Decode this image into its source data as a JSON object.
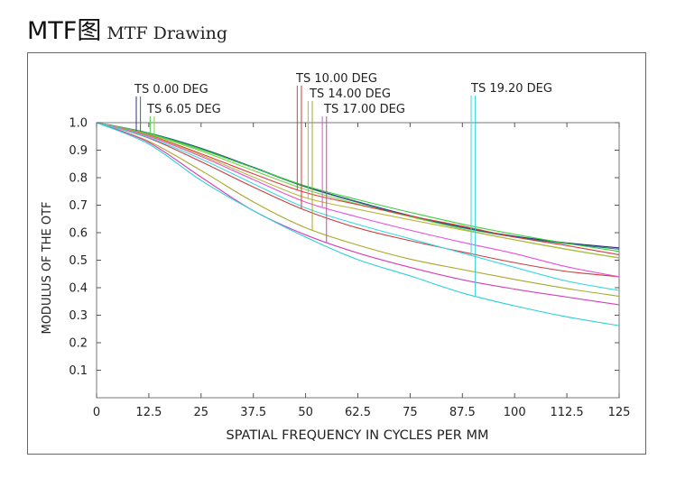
{
  "header": {
    "title": "MTF图",
    "subtitle": "MTF Drawing"
  },
  "chart_data": {
    "type": "line",
    "xlabel": "SPATIAL FREQUENCY IN CYCLES PER MM",
    "ylabel": "MODULUS OF THE OTF",
    "xlim": [
      0,
      125
    ],
    "ylim": [
      0,
      1.0
    ],
    "x_ticks": [
      0,
      12.5,
      25,
      37.5,
      50,
      62.5,
      75,
      87.5,
      100,
      112.5,
      125
    ],
    "x_tick_labels": [
      "0",
      "12.5",
      "25",
      "37.5",
      "50",
      "62.5",
      "75",
      "87.5",
      "100",
      "112.5",
      "125"
    ],
    "y_ticks": [
      0.1,
      0.2,
      0.3,
      0.4,
      0.5,
      0.6,
      0.7,
      0.8,
      0.9,
      1.0
    ],
    "y_tick_labels": [
      "0.1",
      "0.2",
      "0.3",
      "0.4",
      "0.5",
      "0.6",
      "0.7",
      "0.8",
      "0.9",
      "1.0"
    ],
    "x": [
      0,
      12.5,
      25,
      37.5,
      50,
      62.5,
      75,
      87.5,
      100,
      112.5,
      125
    ],
    "series": [
      {
        "field": "TS 0.00 DEG",
        "mode": "T",
        "color": "#2b2f8c",
        "values": [
          1.0,
          0.962,
          0.907,
          0.838,
          0.768,
          0.712,
          0.662,
          0.62,
          0.587,
          0.563,
          0.545
        ]
      },
      {
        "field": "TS 0.00 DEG",
        "mode": "S",
        "color": "#1f7a6a",
        "values": [
          1.0,
          0.962,
          0.906,
          0.836,
          0.766,
          0.71,
          0.66,
          0.618,
          0.584,
          0.56,
          0.54
        ]
      },
      {
        "field": "TS 6.05 DEG",
        "mode": "T",
        "color": "#3ad13a",
        "values": [
          1.0,
          0.96,
          0.902,
          0.836,
          0.77,
          0.72,
          0.674,
          0.631,
          0.594,
          0.561,
          0.532
        ]
      },
      {
        "field": "TS 6.05 DEG",
        "mode": "S",
        "color": "#77d24a",
        "values": [
          1.0,
          0.958,
          0.897,
          0.826,
          0.757,
          0.704,
          0.658,
          0.613,
          0.574,
          0.539,
          0.508
        ]
      },
      {
        "field": "TS 10.00 DEG",
        "mode": "T",
        "color": "#e03b3b",
        "values": [
          1.0,
          0.955,
          0.887,
          0.814,
          0.746,
          0.702,
          0.661,
          0.624,
          0.584,
          0.553,
          0.52
        ]
      },
      {
        "field": "TS 10.00 DEG",
        "mode": "S",
        "color": "#cc3c3c",
        "values": [
          1.0,
          0.944,
          0.858,
          0.766,
          0.681,
          0.617,
          0.571,
          0.53,
          0.491,
          0.459,
          0.44
        ]
      },
      {
        "field": "TS 14.00 DEG",
        "mode": "T",
        "color": "#b9b73a",
        "values": [
          1.0,
          0.953,
          0.882,
          0.802,
          0.727,
          0.685,
          0.647,
          0.61,
          0.574,
          0.54,
          0.509
        ]
      },
      {
        "field": "TS 14.00 DEG",
        "mode": "S",
        "color": "#a8a82a",
        "values": [
          1.0,
          0.932,
          0.826,
          0.712,
          0.618,
          0.555,
          0.504,
          0.466,
          0.43,
          0.397,
          0.369
        ]
      },
      {
        "field": "TS 17.00 DEG",
        "mode": "T",
        "color": "#e84fd8",
        "values": [
          1.0,
          0.95,
          0.877,
          0.793,
          0.711,
          0.657,
          0.609,
          0.565,
          0.524,
          0.476,
          0.44
        ]
      },
      {
        "field": "TS 17.00 DEG",
        "mode": "S",
        "color": "#d63fb8",
        "values": [
          1.0,
          0.928,
          0.802,
          0.68,
          0.592,
          0.526,
          0.474,
          0.429,
          0.395,
          0.366,
          0.338
        ]
      },
      {
        "field": "TS 19.20 DEG",
        "mode": "T",
        "color": "#3bd8e6",
        "values": [
          1.0,
          0.946,
          0.868,
          0.778,
          0.69,
          0.63,
          0.578,
          0.526,
          0.474,
          0.424,
          0.39
        ]
      },
      {
        "field": "TS 19.20 DEG",
        "mode": "S",
        "color": "#2ad0d8",
        "values": [
          1.0,
          0.922,
          0.79,
          0.68,
          0.584,
          0.502,
          0.443,
          0.381,
          0.334,
          0.294,
          0.262
        ]
      }
    ],
    "field_labels": [
      {
        "text": "TS 0.00 DEG",
        "marker_x": [
          9.5,
          10.5
        ],
        "colors": [
          "#2b2f8c",
          "#1f7a6a"
        ]
      },
      {
        "text": "TS 6.05 DEG",
        "marker_x": [
          12.8,
          13.8
        ],
        "colors": [
          "#3ad13a",
          "#77d24a"
        ]
      },
      {
        "text": "TS 10.00 DEG",
        "marker_x": [
          48.0,
          49.0
        ],
        "colors": [
          "#e03b3b",
          "#cc3c3c"
        ]
      },
      {
        "text": "TS 14.00 DEG",
        "marker_x": [
          50.6,
          51.6
        ],
        "colors": [
          "#b9b73a",
          "#a8a82a"
        ]
      },
      {
        "text": "TS 17.00 DEG",
        "marker_x": [
          54.0,
          55.0
        ],
        "colors": [
          "#e84fd8",
          "#d63fb8"
        ]
      },
      {
        "text": "TS 19.20 DEG",
        "marker_x": [
          89.6,
          90.6
        ],
        "colors": [
          "#3bd8e6",
          "#2ad0d8"
        ]
      }
    ]
  }
}
